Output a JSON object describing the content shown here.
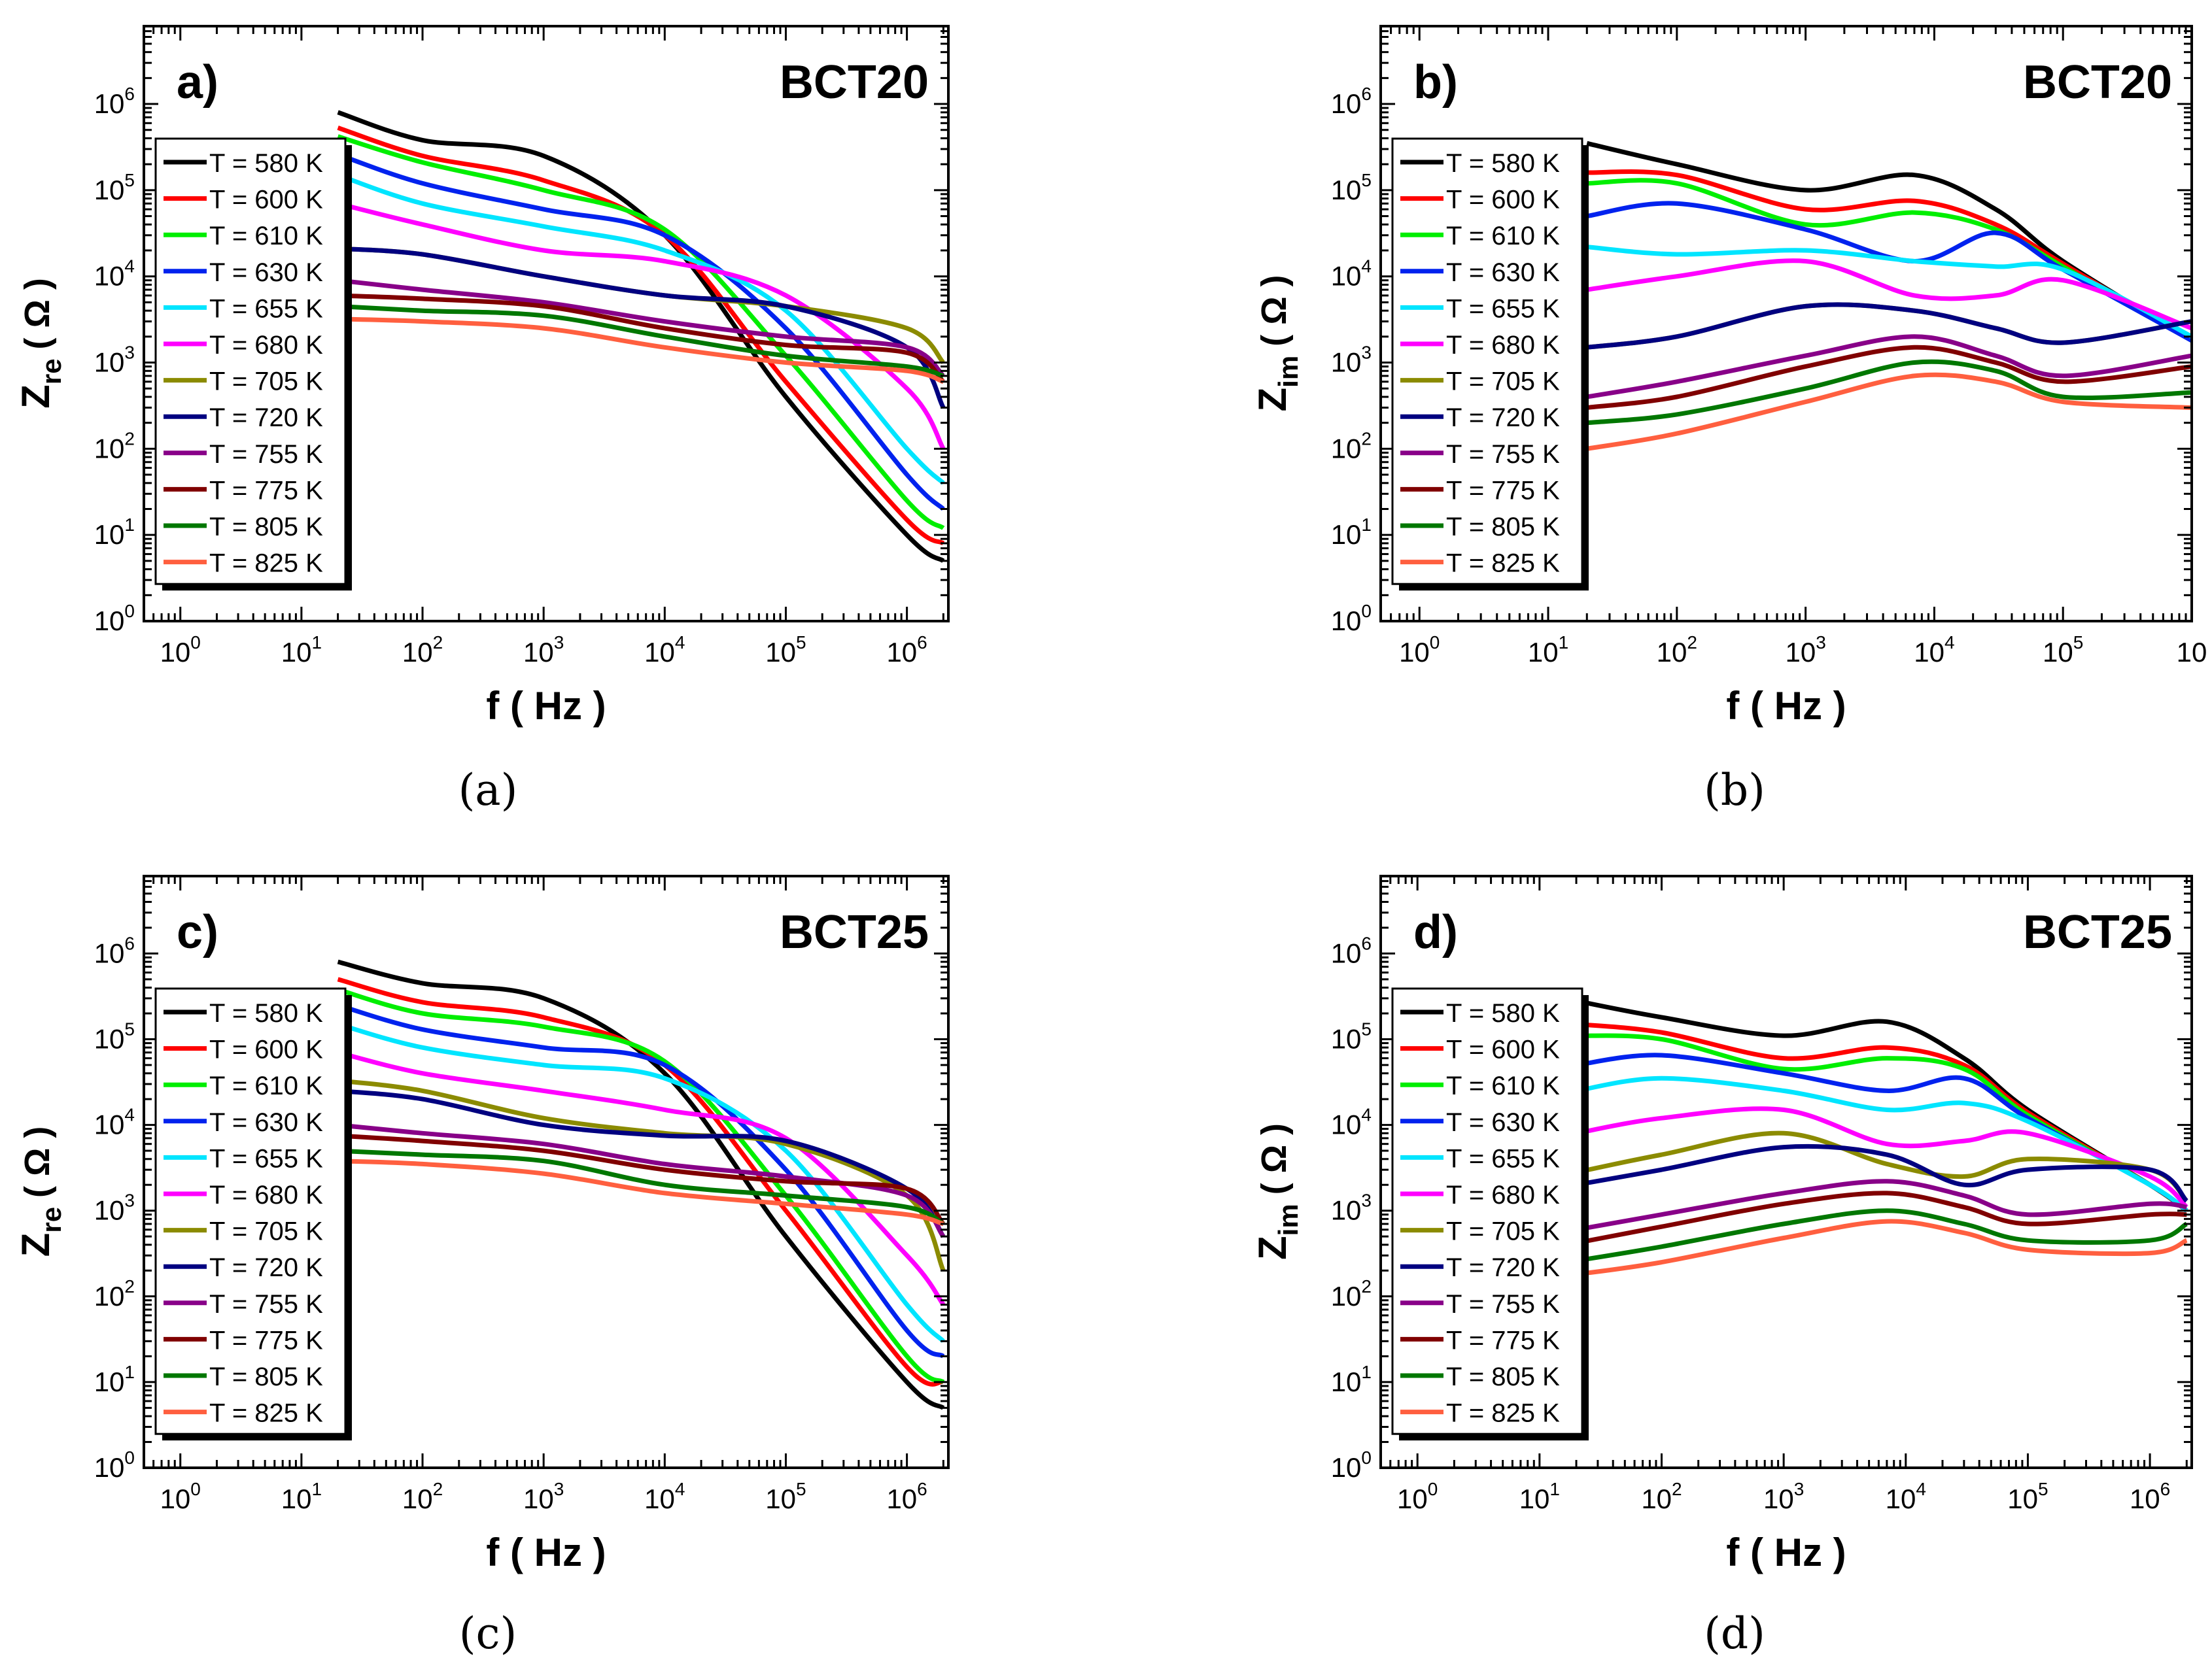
{
  "colors": {
    "T580": "#000000",
    "T600": "#ff0000",
    "T610": "#00ee00",
    "T630": "#0022ee",
    "T655": "#00e5ff",
    "T680": "#ff00ff",
    "T705": "#8b8b00",
    "T720": "#000080",
    "T755": "#880088",
    "T775": "#800000",
    "T805": "#007700",
    "T825": "#ff5f3f"
  },
  "captions": [
    "(a)",
    "(b)",
    "(c)",
    "(d)"
  ],
  "chart_data": [
    {
      "type": "line",
      "panel_label": "a)",
      "sample": "BCT20",
      "xlabel": "f ( Hz )",
      "ylabel_main": "Z",
      "ylabel_sub": "re",
      "ylabel_unit": "( Ω )",
      "xscale": "log",
      "yscale": "log",
      "xlim": [
        0.5,
        2200000
      ],
      "ylim": [
        1,
        8000000
      ],
      "x_ticks": [
        {
          "b": "10",
          "e": "0"
        },
        {
          "b": "10",
          "e": "1"
        },
        {
          "b": "10",
          "e": "2"
        },
        {
          "b": "10",
          "e": "3"
        },
        {
          "b": "10",
          "e": "4"
        },
        {
          "b": "10",
          "e": "5"
        },
        {
          "b": "10",
          "e": "6"
        }
      ],
      "y_ticks": [
        {
          "b": "10",
          "e": "0"
        },
        {
          "b": "10",
          "e": "1"
        },
        {
          "b": "10",
          "e": "2"
        },
        {
          "b": "10",
          "e": "3"
        },
        {
          "b": "10",
          "e": "4"
        },
        {
          "b": "10",
          "e": "5"
        },
        {
          "b": "10",
          "e": "6"
        }
      ],
      "legend_position": "left",
      "x": [
        20,
        100,
        1000,
        10000,
        100000,
        1000000,
        2000000
      ],
      "series": [
        {
          "name": "T = 580 K",
          "color_key": "T580",
          "values": [
            800000,
            380000,
            250000,
            30000,
            400,
            10,
            5
          ]
        },
        {
          "name": "T = 600 K",
          "color_key": "T600",
          "values": [
            530000,
            250000,
            130000,
            30000,
            600,
            15,
            8
          ]
        },
        {
          "name": "T = 610 K",
          "color_key": "T610",
          "values": [
            420000,
            210000,
            100000,
            35000,
            1200,
            25,
            12
          ]
        },
        {
          "name": "T = 630 K",
          "color_key": "T630",
          "values": [
            260000,
            120000,
            60000,
            30000,
            2500,
            50,
            20
          ]
        },
        {
          "name": "T = 655 K",
          "color_key": "T655",
          "values": [
            150000,
            70000,
            38000,
            20000,
            4000,
            100,
            40
          ]
        },
        {
          "name": "T = 680 K",
          "color_key": "T680",
          "values": [
            70000,
            40000,
            20000,
            15000,
            6000,
            500,
            100
          ]
        },
        {
          "name": "T = 705 K",
          "color_key": "T705",
          "values": [
            21000,
            18000,
            10000,
            6000,
            4500,
            2500,
            1000
          ]
        },
        {
          "name": "T = 720 K",
          "color_key": "T720",
          "values": [
            21000,
            18000,
            10000,
            6000,
            4500,
            1500,
            300
          ]
        },
        {
          "name": "T = 755 K",
          "color_key": "T755",
          "values": [
            9000,
            7000,
            5000,
            3000,
            2000,
            1500,
            700
          ]
        },
        {
          "name": "T = 775 K",
          "color_key": "T775",
          "values": [
            6000,
            5500,
            4500,
            2500,
            1600,
            1300,
            600
          ]
        },
        {
          "name": "T = 805 K",
          "color_key": "T805",
          "values": [
            4500,
            4000,
            3500,
            2000,
            1200,
            900,
            700
          ]
        },
        {
          "name": "T = 825 K",
          "color_key": "T825",
          "values": [
            3200,
            3000,
            2500,
            1500,
            1000,
            800,
            600
          ]
        }
      ]
    },
    {
      "type": "line",
      "panel_label": "b)",
      "sample": "BCT20",
      "xlabel": "f ( Hz )",
      "ylabel_main": "Z",
      "ylabel_sub": "im",
      "ylabel_unit": "( Ω )",
      "xscale": "log",
      "yscale": "log",
      "xlim": [
        0.5,
        1000000
      ],
      "ylim": [
        1,
        8000000
      ],
      "x_ticks": [
        {
          "b": "10",
          "e": "0"
        },
        {
          "b": "10",
          "e": "1"
        },
        {
          "b": "10",
          "e": "2"
        },
        {
          "b": "10",
          "e": "3"
        },
        {
          "b": "10",
          "e": "4"
        },
        {
          "b": "10",
          "e": "5"
        },
        {
          "b": "10",
          "e": ""
        }
      ],
      "y_ticks": [
        {
          "b": "10",
          "e": "0"
        },
        {
          "b": "10",
          "e": "1"
        },
        {
          "b": "10",
          "e": "2"
        },
        {
          "b": "10",
          "e": "3"
        },
        {
          "b": "10",
          "e": "4"
        },
        {
          "b": "10",
          "e": "5"
        },
        {
          "b": "10",
          "e": "6"
        }
      ],
      "legend_position": "left",
      "x": [
        20,
        100,
        1000,
        7000,
        30000,
        100000,
        1000000
      ],
      "series": [
        {
          "name": "T = 580 K",
          "color_key": "T580",
          "values": [
            350000,
            200000,
            100000,
            150000,
            60000,
            15000,
            1800
          ]
        },
        {
          "name": "T = 600 K",
          "color_key": "T600",
          "values": [
            160000,
            150000,
            60000,
            75000,
            40000,
            14000,
            1800
          ]
        },
        {
          "name": "T = 610 K",
          "color_key": "T610",
          "values": [
            120000,
            120000,
            40000,
            55000,
            35000,
            13000,
            1800
          ]
        },
        {
          "name": "T = 630 K",
          "color_key": "T630",
          "values": [
            50000,
            70000,
            35000,
            15000,
            32000,
            12000,
            1800
          ]
        },
        {
          "name": "T = 655 K",
          "color_key": "T655",
          "values": [
            22000,
            18000,
            20000,
            15000,
            13000,
            12000,
            2000
          ]
        },
        {
          "name": "T = 680 K",
          "color_key": "T680",
          "values": [
            7000,
            10000,
            15000,
            6000,
            6000,
            9000,
            2500
          ]
        },
        {
          "name": "T = 705 K",
          "color_key": "T705",
          "values": [
            1500,
            2000,
            4500,
            4000,
            2500,
            1700,
            3000
          ]
        },
        {
          "name": "T = 720 K",
          "color_key": "T720",
          "values": [
            1500,
            2000,
            4500,
            4000,
            2500,
            1700,
            3000
          ]
        },
        {
          "name": "T = 755 K",
          "color_key": "T755",
          "values": [
            400,
            600,
            1200,
            2000,
            1200,
            700,
            1200
          ]
        },
        {
          "name": "T = 775 K",
          "color_key": "T775",
          "values": [
            300,
            400,
            900,
            1500,
            1000,
            600,
            900
          ]
        },
        {
          "name": "T = 805 K",
          "color_key": "T805",
          "values": [
            200,
            250,
            500,
            1000,
            800,
            400,
            450
          ]
        },
        {
          "name": "T = 825 K",
          "color_key": "T825",
          "values": [
            100,
            150,
            350,
            700,
            600,
            350,
            300
          ]
        }
      ]
    },
    {
      "type": "line",
      "panel_label": "c)",
      "sample": "BCT25",
      "xlabel": "f ( Hz )",
      "ylabel_main": "Z",
      "ylabel_sub": "re",
      "ylabel_unit": "( Ω )",
      "xscale": "log",
      "yscale": "log",
      "xlim": [
        0.5,
        2200000
      ],
      "ylim": [
        1,
        8000000
      ],
      "x_ticks": [
        {
          "b": "10",
          "e": "0"
        },
        {
          "b": "10",
          "e": "1"
        },
        {
          "b": "10",
          "e": "2"
        },
        {
          "b": "10",
          "e": "3"
        },
        {
          "b": "10",
          "e": "4"
        },
        {
          "b": "10",
          "e": "5"
        },
        {
          "b": "10",
          "e": "6"
        }
      ],
      "y_ticks": [
        {
          "b": "10",
          "e": "0"
        },
        {
          "b": "10",
          "e": "1"
        },
        {
          "b": "10",
          "e": "2"
        },
        {
          "b": "10",
          "e": "3"
        },
        {
          "b": "10",
          "e": "4"
        },
        {
          "b": "10",
          "e": "5"
        },
        {
          "b": "10",
          "e": "6"
        }
      ],
      "legend_position": "left",
      "x": [
        20,
        100,
        1000,
        10000,
        100000,
        1000000,
        2000000
      ],
      "series": [
        {
          "name": "T = 580 K",
          "color_key": "T580",
          "values": [
            800000,
            450000,
            300000,
            40000,
            500,
            10,
            5
          ]
        },
        {
          "name": "T = 600 K",
          "color_key": "T600",
          "values": [
            500000,
            270000,
            180000,
            50000,
            1000,
            15,
            10
          ]
        },
        {
          "name": "T = 610 K",
          "color_key": "T610",
          "values": [
            380000,
            200000,
            140000,
            55000,
            1500,
            20,
            10
          ]
        },
        {
          "name": "T = 630 K",
          "color_key": "T630",
          "values": [
            250000,
            130000,
            80000,
            50000,
            3000,
            40,
            20
          ]
        },
        {
          "name": "T = 655 K",
          "color_key": "T655",
          "values": [
            150000,
            80000,
            50000,
            35000,
            5000,
            80,
            30
          ]
        },
        {
          "name": "T = 680 K",
          "color_key": "T680",
          "values": [
            70000,
            40000,
            25000,
            15000,
            7000,
            300,
            80
          ]
        },
        {
          "name": "T = 705 K",
          "color_key": "T705",
          "values": [
            33000,
            25000,
            12000,
            8000,
            6000,
            1500,
            200
          ]
        },
        {
          "name": "T = 720 K",
          "color_key": "T720",
          "values": [
            25000,
            20000,
            10000,
            7500,
            6500,
            1800,
            500
          ]
        },
        {
          "name": "T = 755 K",
          "color_key": "T755",
          "values": [
            10000,
            8000,
            6000,
            3500,
            2500,
            1500,
            500
          ]
        },
        {
          "name": "T = 775 K",
          "color_key": "T775",
          "values": [
            7500,
            6500,
            5000,
            3000,
            2200,
            1800,
            700
          ]
        },
        {
          "name": "T = 805 K",
          "color_key": "T805",
          "values": [
            5000,
            4500,
            3800,
            2000,
            1500,
            1100,
            700
          ]
        },
        {
          "name": "T = 825 K",
          "color_key": "T825",
          "values": [
            3800,
            3500,
            2700,
            1600,
            1200,
            900,
            700
          ]
        }
      ]
    },
    {
      "type": "line",
      "panel_label": "d)",
      "sample": "BCT25",
      "xlabel": "f ( Hz )",
      "ylabel_main": "Z",
      "ylabel_sub": "im",
      "ylabel_unit": "( Ω )",
      "xscale": "log",
      "yscale": "log",
      "xlim": [
        0.5,
        2200000
      ],
      "ylim": [
        1,
        8000000
      ],
      "x_ticks": [
        {
          "b": "10",
          "e": "0"
        },
        {
          "b": "10",
          "e": "1"
        },
        {
          "b": "10",
          "e": "2"
        },
        {
          "b": "10",
          "e": "3"
        },
        {
          "b": "10",
          "e": "4"
        },
        {
          "b": "10",
          "e": "5"
        },
        {
          "b": "10",
          "e": "6"
        }
      ],
      "y_ticks": [
        {
          "b": "10",
          "e": "0"
        },
        {
          "b": "10",
          "e": "1"
        },
        {
          "b": "10",
          "e": "2"
        },
        {
          "b": "10",
          "e": "3"
        },
        {
          "b": "10",
          "e": "4"
        },
        {
          "b": "10",
          "e": "5"
        },
        {
          "b": "10",
          "e": "6"
        }
      ],
      "legend_position": "left",
      "x": [
        20,
        100,
        1000,
        7000,
        30000,
        100000,
        1000000,
        2000000
      ],
      "series": [
        {
          "name": "T = 580 K",
          "color_key": "T580",
          "values": [
            280000,
            180000,
            110000,
            160000,
            60000,
            15000,
            2000,
            1000
          ]
        },
        {
          "name": "T = 600 K",
          "color_key": "T600",
          "values": [
            150000,
            120000,
            60000,
            80000,
            50000,
            14000,
            2000,
            1000
          ]
        },
        {
          "name": "T = 610 K",
          "color_key": "T610",
          "values": [
            110000,
            100000,
            45000,
            60000,
            45000,
            13000,
            2000,
            1000
          ]
        },
        {
          "name": "T = 630 K",
          "color_key": "T630",
          "values": [
            50000,
            65000,
            40000,
            25000,
            35000,
            12000,
            2000,
            1000
          ]
        },
        {
          "name": "T = 655 K",
          "color_key": "T655",
          "values": [
            25000,
            35000,
            25000,
            15000,
            18000,
            11000,
            2000,
            1000
          ]
        },
        {
          "name": "T = 680 K",
          "color_key": "T680",
          "values": [
            8000,
            12000,
            15000,
            6000,
            6500,
            8000,
            2500,
            1100
          ]
        },
        {
          "name": "T = 705 K",
          "color_key": "T705",
          "values": [
            2800,
            4500,
            8000,
            3500,
            2500,
            4000,
            3000,
            1300
          ]
        },
        {
          "name": "T = 720 K",
          "color_key": "T720",
          "values": [
            2000,
            3000,
            5500,
            4500,
            2000,
            3000,
            3000,
            1300
          ]
        },
        {
          "name": "T = 755 K",
          "color_key": "T755",
          "values": [
            600,
            900,
            1600,
            2200,
            1500,
            900,
            1200,
            1100
          ]
        },
        {
          "name": "T = 775 K",
          "color_key": "T775",
          "values": [
            420,
            650,
            1200,
            1600,
            1100,
            700,
            900,
            900
          ]
        },
        {
          "name": "T = 805 K",
          "color_key": "T805",
          "values": [
            260,
            380,
            700,
            1000,
            700,
            450,
            450,
            700
          ]
        },
        {
          "name": "T = 825 K",
          "color_key": "T825",
          "values": [
            180,
            250,
            480,
            750,
            550,
            350,
            320,
            450
          ]
        }
      ]
    }
  ]
}
